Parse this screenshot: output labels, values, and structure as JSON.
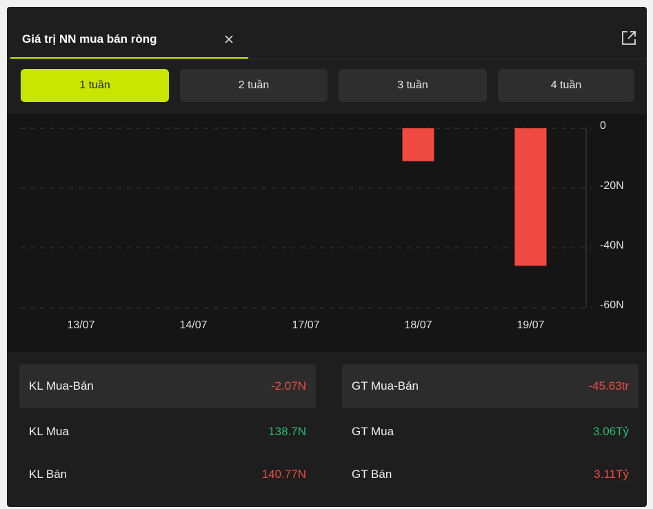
{
  "tab": {
    "title": "Giá trị NN mua bán ròng"
  },
  "periods": [
    "1 tuần",
    "2 tuần",
    "3 tuần",
    "4 tuần"
  ],
  "chart_data": {
    "type": "bar",
    "categories": [
      "13/07",
      "14/07",
      "17/07",
      "18/07",
      "19/07"
    ],
    "values": [
      0,
      0,
      0,
      -11,
      -46
    ],
    "color": "#ef4b43",
    "ylim": [
      -60,
      0
    ],
    "yticks": [
      0,
      {
        "value": -20,
        "label": "-20N"
      },
      {
        "value": -40,
        "label": "-40N"
      },
      {
        "value": -60,
        "label": "-60N"
      }
    ],
    "grid": true
  },
  "stats": [
    [
      {
        "label": "KL Mua-Bán",
        "value": "-2.07N",
        "color": "#ef4b43"
      },
      {
        "label": "GT Mua-Bán",
        "value": "-45.63tr",
        "color": "#ef4b43"
      }
    ],
    [
      {
        "label": "KL Mua",
        "value": "138.7N",
        "color": "#2bbd6e"
      },
      {
        "label": "GT Mua",
        "value": "3.06Tỷ",
        "color": "#2bbd6e"
      }
    ],
    [
      {
        "label": "KL Bán",
        "value": "140.77N",
        "color": "#ef4b43"
      },
      {
        "label": "GT Bán",
        "value": "3.11Tỷ",
        "color": "#ef4b43"
      }
    ]
  ]
}
